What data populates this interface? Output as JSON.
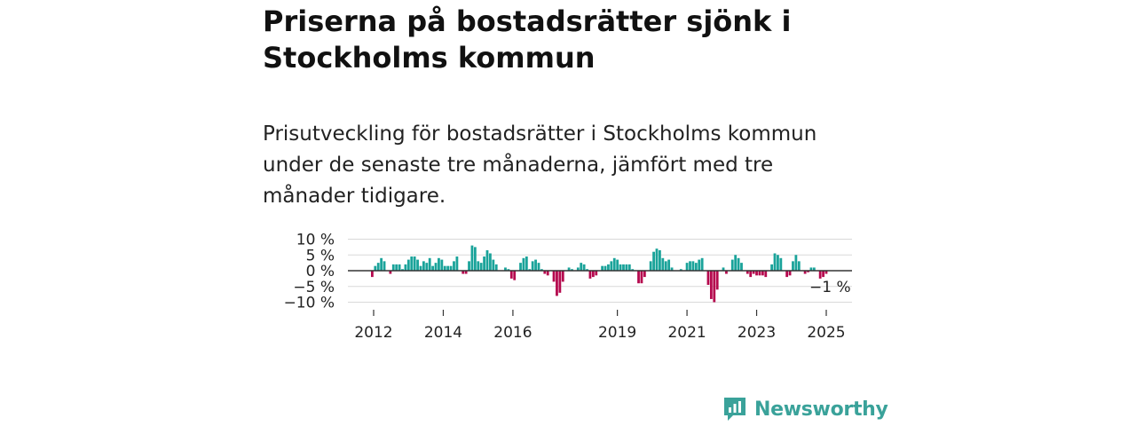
{
  "title": "Priserna på bostadsrätter sjönk i Stockholms kommun",
  "subtitle": "Prisutveckling för bostadsrätter i Stockholms kommun under de senaste tre månaderna, jämfört med tre månader tidigare.",
  "brand": {
    "name": "Newsworthy"
  },
  "colors": {
    "positive": "#1aa39a",
    "negative": "#b5094e",
    "grid": "#d9d9d9",
    "zero_line": "#333333",
    "brand": "#3aa29a"
  },
  "chart_data": {
    "type": "bar",
    "unit": "%",
    "ylim": [
      -10,
      10
    ],
    "yticks": [
      {
        "value": 10,
        "label": "10 %"
      },
      {
        "value": 5,
        "label": "5 %"
      },
      {
        "value": 0,
        "label": "0 %"
      },
      {
        "value": -5,
        "label": "−5 %"
      },
      {
        "value": -10,
        "label": "−10 %"
      }
    ],
    "x_start": 2011.5,
    "x_end": 2025.5,
    "xticks": [
      {
        "value": 2012,
        "label": "2012"
      },
      {
        "value": 2014,
        "label": "2014"
      },
      {
        "value": 2016,
        "label": "2016"
      },
      {
        "value": 2019,
        "label": "2019"
      },
      {
        "value": 2021,
        "label": "2021"
      },
      {
        "value": 2023,
        "label": "2023"
      },
      {
        "value": 2025,
        "label": "2025"
      }
    ],
    "annotation": "−1 %",
    "values": [
      -2,
      1.5,
      2.5,
      4,
      3,
      0,
      -1,
      2,
      2,
      2,
      0.5,
      2,
      3.5,
      4.5,
      4.5,
      3.5,
      1.5,
      3,
      2.5,
      4,
      1.5,
      2.5,
      4,
      3.5,
      1.5,
      1.5,
      1.5,
      3,
      4.5,
      0,
      -1,
      -1,
      3,
      8,
      7.5,
      3,
      2.5,
      4.5,
      6.5,
      5.5,
      3.5,
      2,
      0,
      0,
      1,
      0.5,
      -2.5,
      -3,
      0,
      2.5,
      4,
      4.5,
      0.5,
      3,
      3.5,
      2.5,
      0.5,
      -1,
      -1.5,
      0,
      -3.5,
      -8,
      -7,
      -3.5,
      0,
      1,
      0.5,
      0,
      1,
      2.5,
      2,
      0.5,
      -2.5,
      -2,
      -1.5,
      0,
      1.5,
      1.5,
      2,
      3,
      4,
      3.5,
      2,
      2,
      2,
      2,
      0.5,
      0,
      -4,
      -4,
      -2,
      0,
      3,
      6,
      7,
      6.5,
      4,
      3,
      3.5,
      1,
      0,
      0,
      0.5,
      0,
      2.5,
      3,
      3,
      2.5,
      3.5,
      4,
      0,
      -4.5,
      -9,
      -10,
      -6,
      0,
      1,
      -1,
      0,
      3.5,
      5,
      4,
      2.5,
      0,
      -1,
      -2,
      -1,
      -1.5,
      -1.5,
      -1.5,
      -2,
      0,
      2,
      5.5,
      5,
      4,
      0,
      -2,
      -1.5,
      3,
      5,
      3,
      0,
      -1,
      -0.5,
      1,
      1,
      0,
      -2.5,
      -2,
      -1
    ]
  }
}
